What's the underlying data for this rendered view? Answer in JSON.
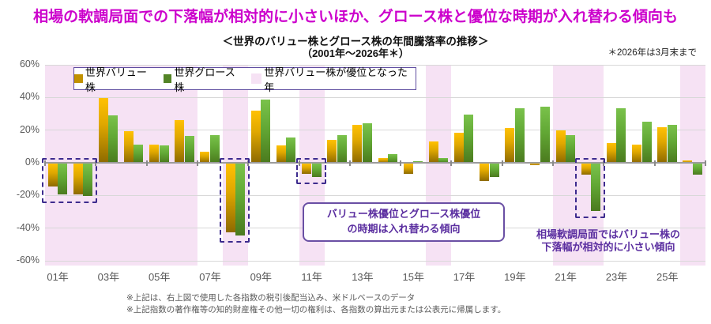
{
  "title": "相場の軟調局面での下落幅が相対的に小さいほか、グロース株と優位な時期が入れ替わる傾向も",
  "subtitle": "＜世界のバリュー株とグロース株の年間騰落率の推移＞",
  "subtitle2": "（2001年～2026年＊）",
  "note": "＊2026年は3月末まで",
  "legend": {
    "value_label": "世界バリュー株",
    "growth_label": "世界グロース株",
    "band_label": "世界バリュー株が優位となった年"
  },
  "annotations": {
    "box_line1": "バリュー株優位とグロース株優位",
    "box_line2": "の時期は入れ替わる傾向",
    "text_line1": "相場軟調局面ではバリュー株の",
    "text_line2": "下落幅が相対的に小さい傾向"
  },
  "footnotes": [
    "※上記は、右上図で使用した各指数の税引後配当込み、米ドルベースのデータ",
    "※上記指数の著作権等の知的財産権その他一切の権利は、各指数の算出元または公表元に帰属します。"
  ],
  "colors": {
    "title": "#CC00CC",
    "value_bar_top": "#FFC103",
    "value_bar_bottom": "#8D6A00",
    "value_swatch": "#C29200",
    "growth_bar_top": "#7AC24B",
    "growth_bar_bottom": "#4B7A1E",
    "growth_swatch": "#538426",
    "advantage_band": "#F6E2F4",
    "dashed_box": "#3D2B8E",
    "annotation_text": "#5B2FA0",
    "axis_label": "#595959"
  },
  "chart_data": {
    "type": "bar",
    "years": [
      2001,
      2002,
      2003,
      2004,
      2005,
      2006,
      2007,
      2008,
      2009,
      2010,
      2011,
      2012,
      2013,
      2014,
      2015,
      2016,
      2017,
      2018,
      2019,
      2020,
      2021,
      2022,
      2023,
      2024,
      2025,
      2026
    ],
    "x_tick_labels": [
      "01年",
      "03年",
      "05年",
      "07年",
      "09年",
      "11年",
      "13年",
      "15年",
      "17年",
      "19年",
      "21年",
      "23年",
      "25年"
    ],
    "y_tick_labels": [
      "60%",
      "40%",
      "20%",
      "0%",
      "-20%",
      "-40%",
      "-60%"
    ],
    "ylim": [
      -60,
      60
    ],
    "unit": "%",
    "series": [
      {
        "name": "世界バリュー株",
        "values": [
          -14,
          -19,
          39.5,
          19.5,
          11,
          26,
          7,
          -42,
          32,
          10.5,
          -6.5,
          14,
          23,
          3,
          -6.5,
          13,
          18.5,
          -10.5,
          21.5,
          -1,
          20,
          -7,
          12,
          11,
          22,
          1.5
        ]
      },
      {
        "name": "世界グロース株",
        "values": [
          -19,
          -20,
          29,
          11,
          10.5,
          16.5,
          17,
          -44,
          38.5,
          15.5,
          -8,
          17,
          24,
          5.5,
          1,
          3,
          29.5,
          -8,
          33.5,
          34.5,
          17,
          -29,
          33.5,
          25,
          23,
          -7
        ]
      }
    ],
    "value_advantage_years": [
      2001,
      2002,
      2003,
      2004,
      2005,
      2006,
      2008,
      2011,
      2016,
      2021,
      2022,
      2026
    ],
    "dashed_highlight_year_ranges": [
      [
        2001,
        2002
      ],
      [
        2008,
        2008
      ],
      [
        2011,
        2011
      ],
      [
        2022,
        2022
      ]
    ],
    "legend_position": "top-left-inside",
    "grid": true
  }
}
